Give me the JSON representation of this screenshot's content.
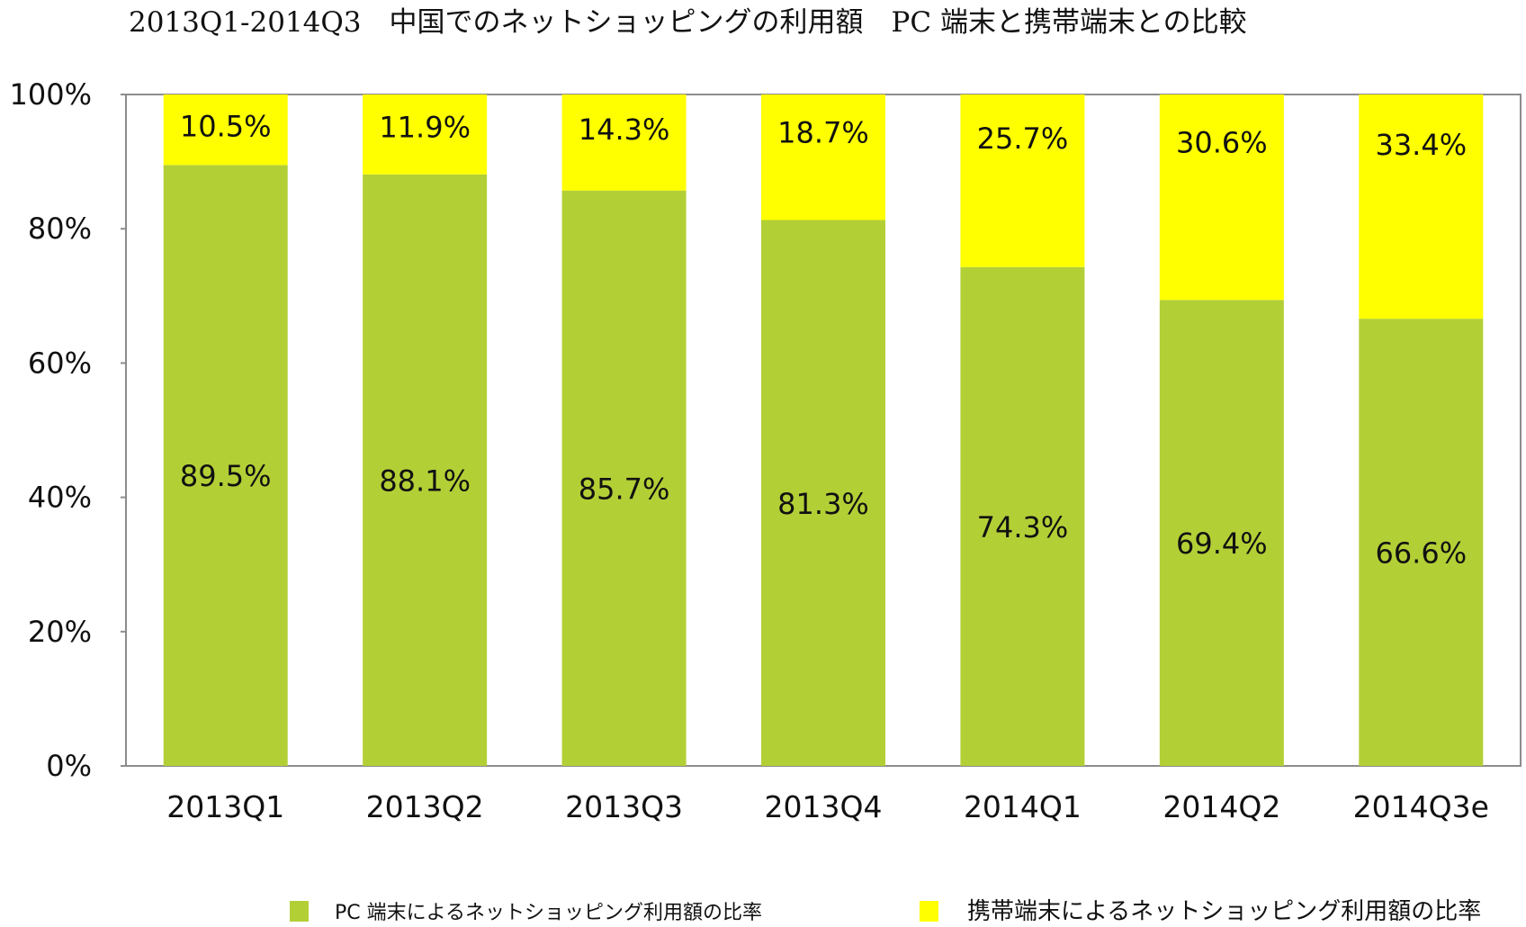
{
  "chart_data": {
    "type": "bar",
    "stacked": true,
    "title": "2013Q1-2014Q3　中国でのネットショッピングの利用額　PC 端末と携帯端末との比較",
    "categories": [
      "2013Q1",
      "2013Q2",
      "2013Q3",
      "2013Q4",
      "2014Q1",
      "2014Q2",
      "2014Q3e"
    ],
    "series": [
      {
        "name": "PC 端末によるネットショッピング利用額の比率",
        "color": "#b3cf36",
        "values": [
          89.5,
          88.1,
          85.7,
          81.3,
          74.3,
          69.4,
          66.6
        ],
        "labels": [
          "89.5%",
          "88.1%",
          "85.7%",
          "81.3%",
          "74.3%",
          "69.4%",
          "66.6%"
        ]
      },
      {
        "name": "携帯端末によるネットショッピング利用額の比率",
        "color": "#ffff00",
        "values": [
          10.5,
          11.9,
          14.3,
          18.7,
          25.7,
          30.6,
          33.4
        ],
        "labels": [
          "10.5%",
          "11.9%",
          "14.3%",
          "18.7%",
          "25.7%",
          "30.6%",
          "33.4%"
        ]
      }
    ],
    "ylim": [
      0,
      100
    ],
    "yticks": [
      0,
      20,
      40,
      60,
      80,
      100
    ],
    "ytick_labels": [
      "0%",
      "20%",
      "40%",
      "60%",
      "80%",
      "100%"
    ],
    "grid": false,
    "legend_position": "bottom",
    "xlabel": "",
    "ylabel": ""
  }
}
